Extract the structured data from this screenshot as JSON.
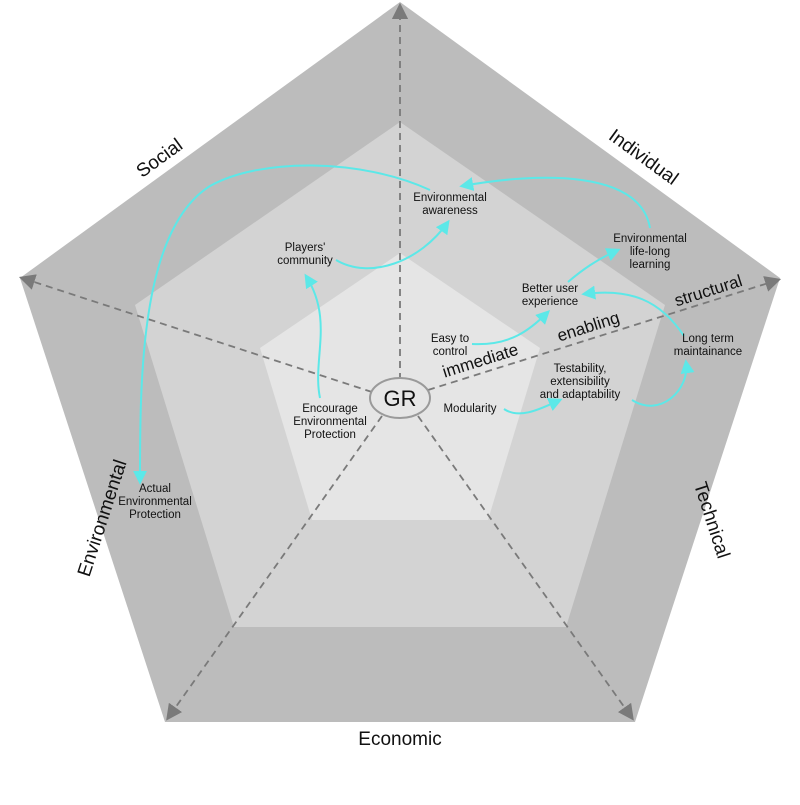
{
  "dimensions": {
    "social": "Social",
    "individual": "Individual",
    "technical": "Technical",
    "economic": "Economic",
    "environmental": "Environmental"
  },
  "order_levels": {
    "immediate": "immediate",
    "enabling": "enabling",
    "structural": "structural"
  },
  "center": {
    "label": "GR"
  },
  "effects": {
    "environmental_awareness": [
      "Environmental",
      "awareness"
    ],
    "players_community": [
      "Players'",
      "community"
    ],
    "environmental_lifelong_learning": [
      "Environmental",
      "life-long",
      "learning"
    ],
    "better_user_experience": [
      "Better user",
      "experience"
    ],
    "easy_to_control": [
      "Easy to",
      "control"
    ],
    "long_term_maintainance": [
      "Long term",
      "maintainance"
    ],
    "testability": [
      "Testability,",
      "extensibility",
      "and adaptability"
    ],
    "modularity": [
      "Modularity"
    ],
    "encourage_environmental_protection": [
      "Encourage",
      "Environmental",
      "Protection"
    ],
    "actual_environmental_protection": [
      "Actual",
      "Environmental",
      "Protection"
    ]
  },
  "colors": {
    "outer_ring": "#bcbcbc",
    "middle_ring": "#d3d3d3",
    "inner_ring": "#e5e5e5",
    "axis": "#7a7a7a",
    "arrow": "#5ce8e8"
  }
}
